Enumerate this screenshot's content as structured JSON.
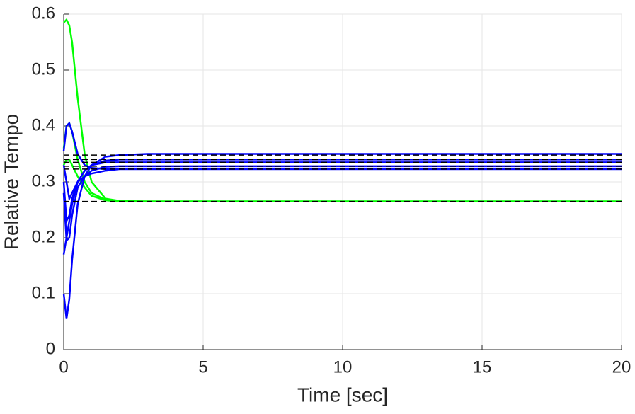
{
  "chart_data": {
    "type": "line",
    "xlabel": "Time [sec]",
    "ylabel": "Relative Tempo",
    "x": [
      0,
      0.1,
      0.2,
      0.3,
      0.5,
      0.75,
      1,
      1.5,
      2,
      3,
      5,
      10,
      20
    ],
    "series": [
      {
        "color": "#00ff00",
        "values": [
          0.585,
          0.59,
          0.58,
          0.55,
          0.45,
          0.35,
          0.3,
          0.27,
          0.266,
          0.265,
          0.265,
          0.265,
          0.265
        ]
      },
      {
        "color": "#00ff00",
        "values": [
          0.36,
          0.4,
          0.405,
          0.39,
          0.34,
          0.3,
          0.28,
          0.268,
          0.265,
          0.265,
          0.265,
          0.265,
          0.265
        ]
      },
      {
        "color": "#00ff00",
        "values": [
          0.33,
          0.34,
          0.34,
          0.33,
          0.31,
          0.29,
          0.275,
          0.267,
          0.265,
          0.265,
          0.265,
          0.265,
          0.265
        ]
      },
      {
        "color": "#0000ff",
        "values": [
          0.1,
          0.055,
          0.09,
          0.16,
          0.26,
          0.31,
          0.33,
          0.345,
          0.348,
          0.35,
          0.35,
          0.35,
          0.35
        ]
      },
      {
        "color": "#0000ff",
        "values": [
          0.17,
          0.2,
          0.23,
          0.26,
          0.3,
          0.32,
          0.33,
          0.338,
          0.34,
          0.34,
          0.34,
          0.34,
          0.34
        ]
      },
      {
        "color": "#0000ff",
        "values": [
          0.355,
          0.4,
          0.405,
          0.39,
          0.35,
          0.33,
          0.325,
          0.323,
          0.323,
          0.323,
          0.323,
          0.323,
          0.323
        ]
      },
      {
        "color": "#0000ff",
        "values": [
          0.3,
          0.23,
          0.24,
          0.27,
          0.3,
          0.32,
          0.33,
          0.335,
          0.335,
          0.335,
          0.335,
          0.335,
          0.335
        ]
      },
      {
        "color": "#0000ff",
        "values": [
          0.28,
          0.195,
          0.2,
          0.24,
          0.29,
          0.31,
          0.32,
          0.327,
          0.328,
          0.328,
          0.328,
          0.328,
          0.328
        ]
      },
      {
        "color": "#0000ff",
        "values": [
          0.33,
          0.3,
          0.27,
          0.28,
          0.3,
          0.31,
          0.315,
          0.32,
          0.323,
          0.323,
          0.323,
          0.323,
          0.323
        ]
      }
    ],
    "reference_lines": {
      "color": "#000000",
      "values": [
        0.265,
        0.323,
        0.328,
        0.335,
        0.34,
        0.348
      ]
    },
    "xlim": [
      0,
      20
    ],
    "xticks": [
      0,
      5,
      10,
      15,
      20
    ],
    "ylim": [
      0,
      0.6
    ],
    "yticks": [
      0,
      0.1,
      0.2,
      0.3,
      0.4,
      0.5,
      0.6
    ],
    "grid": true
  }
}
